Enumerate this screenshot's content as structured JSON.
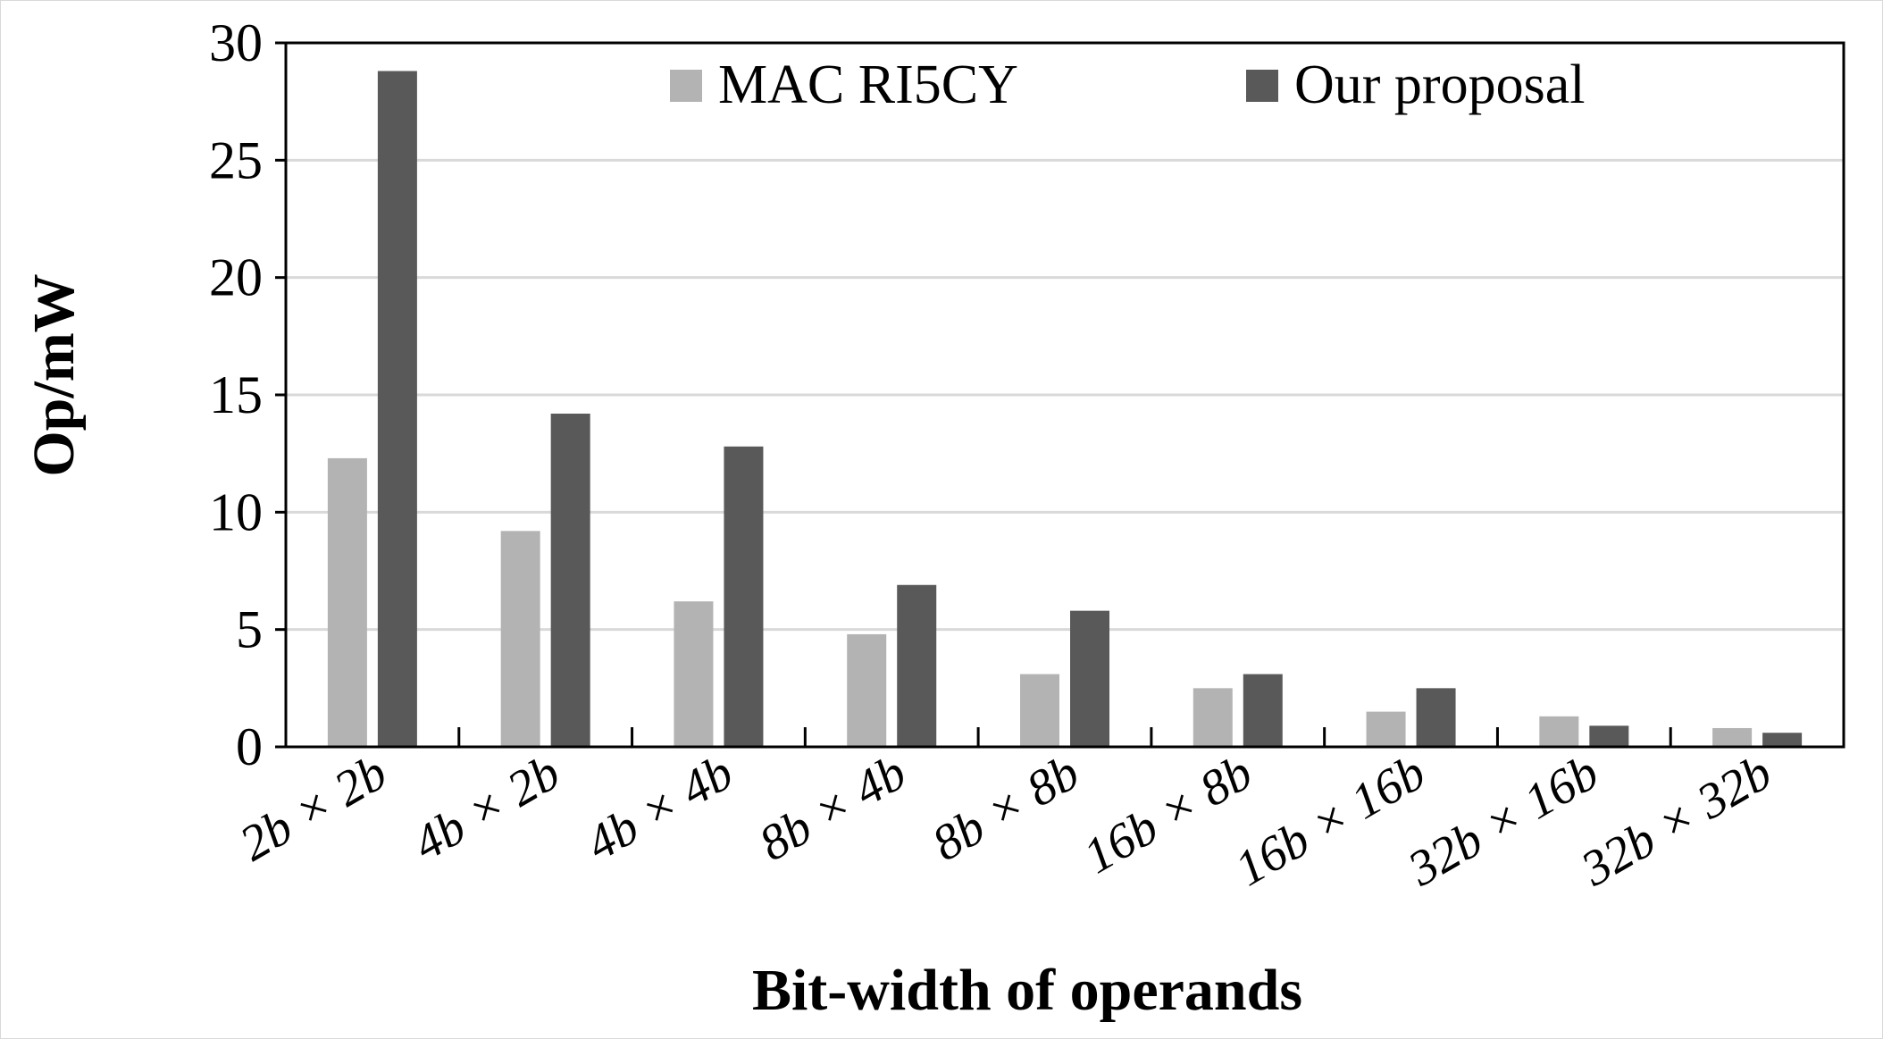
{
  "chart_data": {
    "type": "bar",
    "title": "",
    "xlabel": "Bit-width of operands",
    "ylabel": "Op/mW",
    "categories": [
      "2b × 2b",
      "4b × 2b",
      "4b × 4b",
      "8b × 4b",
      "8b × 8b",
      "16b × 8b",
      "16b × 16b",
      "32b × 16b",
      "32b × 32b"
    ],
    "series": [
      {
        "name": "MAC RI5CY",
        "color": "#b3b3b3",
        "values": [
          12.3,
          9.2,
          6.2,
          4.8,
          3.1,
          2.5,
          1.5,
          1.3,
          0.8
        ]
      },
      {
        "name": "Our proposal",
        "color": "#595959",
        "values": [
          28.8,
          14.2,
          12.8,
          6.9,
          5.8,
          3.1,
          2.5,
          0.9,
          0.6
        ]
      }
    ],
    "ylim": [
      0,
      30
    ],
    "yticks": [
      0,
      5,
      10,
      15,
      20,
      25,
      30
    ],
    "grid": true,
    "legend_position": "top"
  }
}
